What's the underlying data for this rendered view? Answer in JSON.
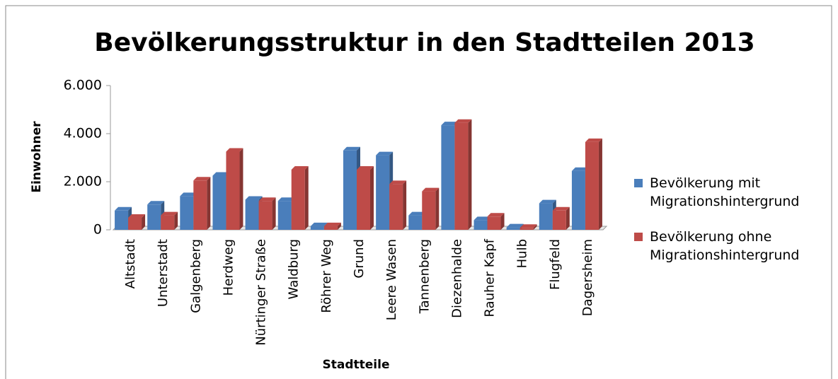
{
  "chart_data": {
    "type": "bar",
    "title": "Bevölkerungsstruktur in den Stadtteilen 2013",
    "x_label": "Stadtteile",
    "y_label": "Einwohner",
    "categories": [
      "Altstadt",
      "Unterstadt",
      "Galgenberg",
      "Herdweg",
      "Nürtinger Straße",
      "Waldburg",
      "Röhrer Weg",
      "Grund",
      "Leere Wasen",
      "Tannenberg",
      "Diezenhalde",
      "Rauher Kapf",
      "Hulb",
      "Flugfeld",
      "Dagersheim"
    ],
    "series": [
      {
        "name": "Bevölkerung mit Migrationshintergrund",
        "color": "#4a7ebb",
        "values": [
          800,
          1050,
          1400,
          2250,
          1250,
          1200,
          150,
          3300,
          3100,
          600,
          4350,
          400,
          100,
          1100,
          2450
        ]
      },
      {
        "name": "Bevölkerung ohne Migrationshintergrund",
        "color": "#be4b48",
        "values": [
          500,
          600,
          2050,
          3250,
          1200,
          2500,
          150,
          2500,
          1900,
          1600,
          4450,
          550,
          80,
          800,
          3650
        ]
      }
    ],
    "ylim": [
      0,
      6000
    ],
    "yticks": [
      0,
      {
        "value": 2000,
        "label": "2.000"
      },
      {
        "value": 4000,
        "label": "4.000"
      },
      {
        "value": 6000,
        "label": "6.000"
      }
    ],
    "legend": "right"
  }
}
